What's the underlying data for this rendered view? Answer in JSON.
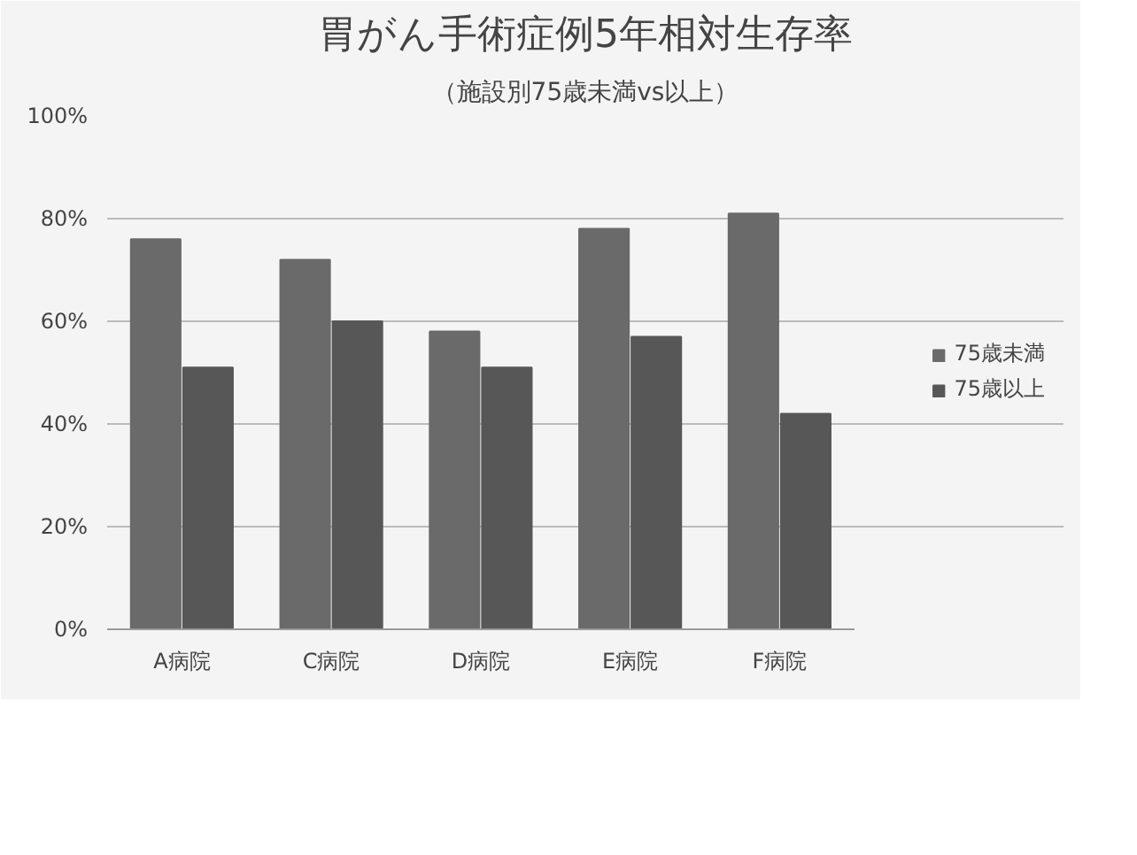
{
  "chart_data": {
    "type": "bar",
    "title": "胃がん手術症例5年相対生存率",
    "subtitle": "（施設別75歳未満vs以上）",
    "categories": [
      "A病院",
      "C病院",
      "D病院",
      "E病院",
      "F病院"
    ],
    "series": [
      {
        "name": "75歳未満",
        "color": "#6a6a6a",
        "values": [
          76,
          72,
          58,
          78,
          81
        ]
      },
      {
        "name": "75歳以上",
        "color": "#575757",
        "values": [
          51,
          60,
          51,
          57,
          42
        ]
      }
    ],
    "ylim": [
      0,
      100
    ],
    "yticks": [
      {
        "value": 0,
        "label": "0%"
      },
      {
        "value": 20,
        "label": "20%"
      },
      {
        "value": 40,
        "label": "40%"
      },
      {
        "value": 60,
        "label": "60%"
      },
      {
        "value": 80,
        "label": "80%"
      },
      {
        "value": 100,
        "label": "100%"
      }
    ],
    "grid": "y",
    "legend": "right"
  }
}
